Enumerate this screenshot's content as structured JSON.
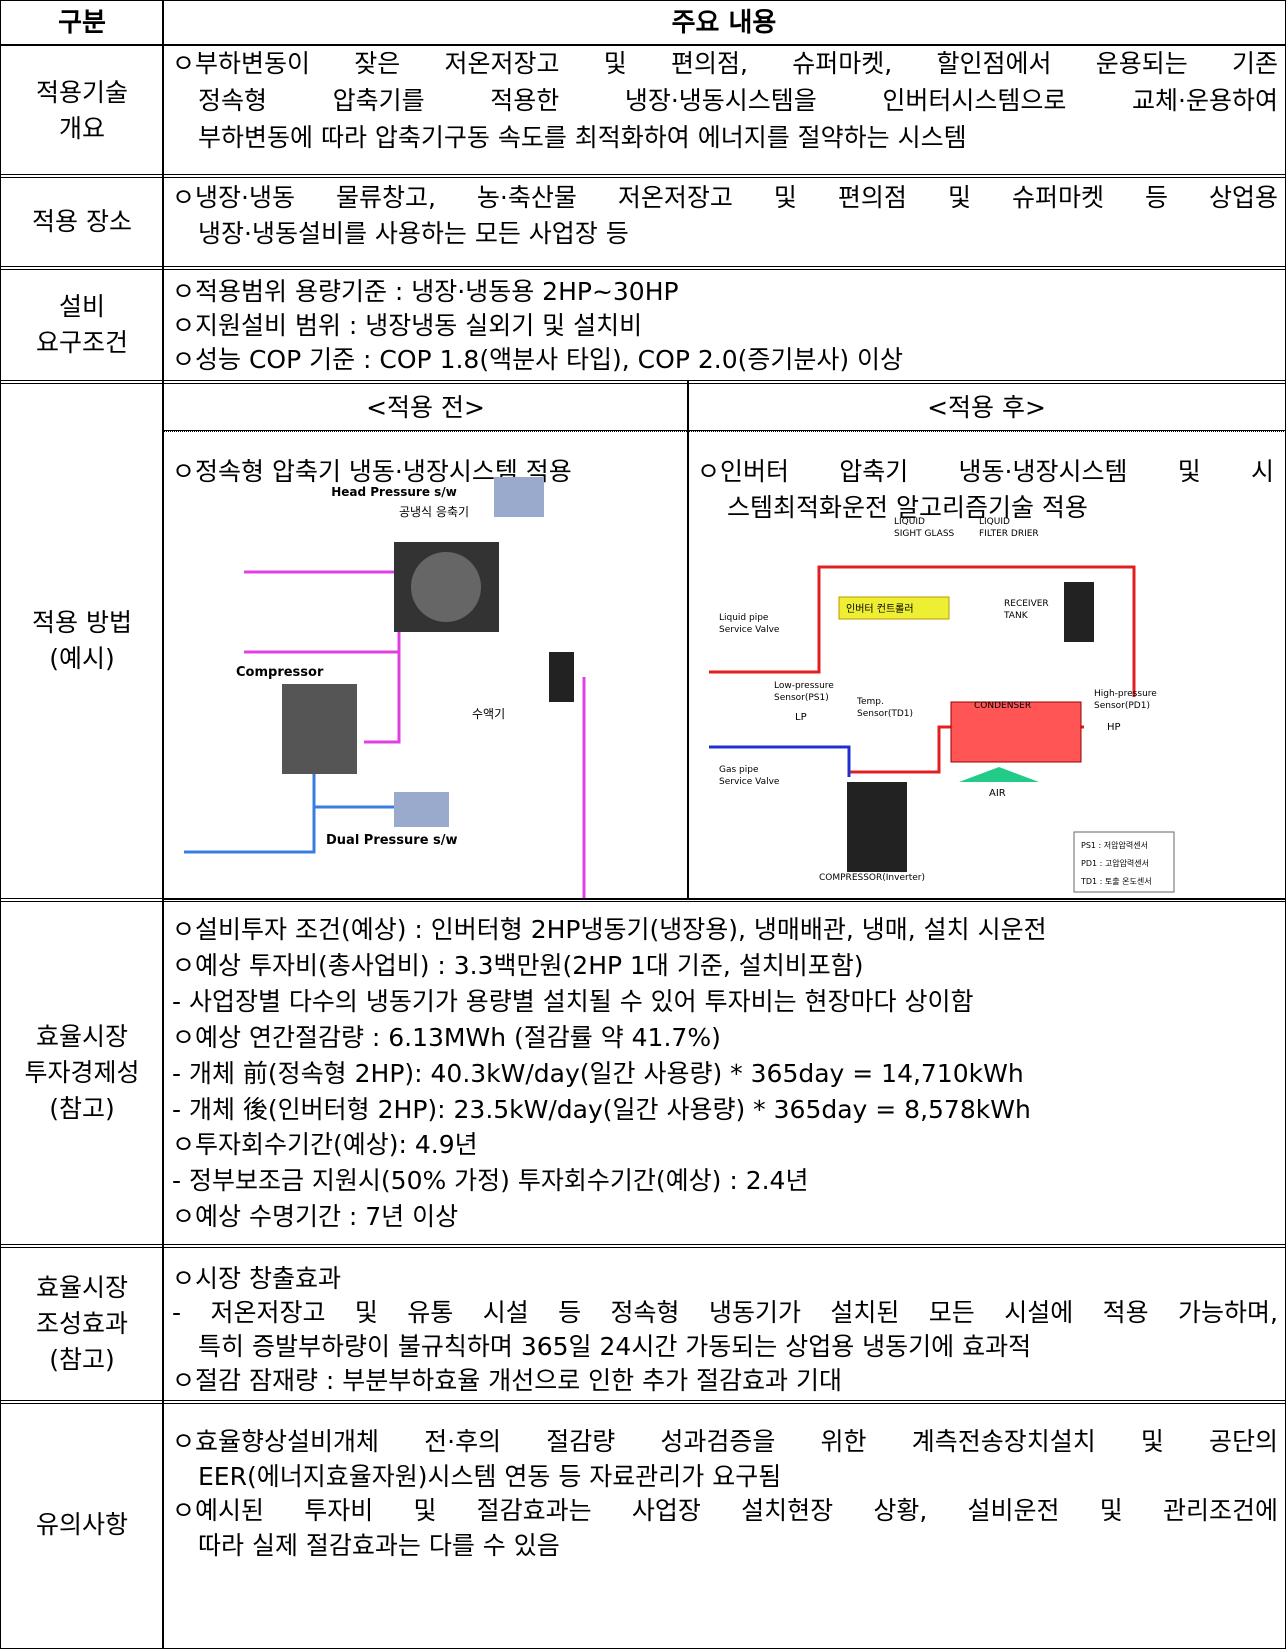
{
  "header": {
    "col1": "구분",
    "col2": "주요 내용"
  },
  "overview": {
    "label": [
      "적용기술",
      "개요"
    ],
    "lines": [
      "ㅇ부하변동이 잦은 저온저장고 및 편의점, 슈퍼마켓, 할인점에서 운용되는 기존",
      "정속형 압축기를 적용한 냉장·냉동시스템을 인버터시스템으로 교체·운용하여",
      "부하변동에 따라 압축기구동 속도를 최적화하여 에너지를 절약하는 시스템"
    ]
  },
  "site": {
    "label": [
      "적용 장소"
    ],
    "lines": [
      "ㅇ냉장·냉동 물류창고, 농·축산물 저온저장고 및 편의점 및 슈퍼마켓 등 상업용",
      "냉장·냉동설비를 사용하는 모든 사업장 등"
    ]
  },
  "requirements": {
    "label": [
      "설비",
      "요구조건"
    ],
    "lines": [
      "ㅇ적용범위 용량기준 : 냉장·냉동용 2HP~30HP",
      "ㅇ지원설비 범위 : 냉장냉동 실외기 및 설치비",
      "ㅇ성능 COP 기준 : COP 1.8(액분사 타입), COP 2.0(증기분사) 이상"
    ]
  },
  "method": {
    "label": [
      "적용 방법",
      "(예시)"
    ],
    "before": {
      "heading": "<적용 전>",
      "lines": [
        "ㅇ정속형 압축기 냉동·냉장시스템 적용"
      ],
      "diagram": [
        "Head Pressure s/w",
        "공냉식 응축기",
        "Compressor",
        "수액기",
        "Dual Pressure s/w"
      ]
    },
    "after": {
      "heading": "<적용 후>",
      "lines": [
        "ㅇ인버터 압축기 냉동·냉장시스템 및 시",
        "스템최적화운전 알고리즘기술 적용"
      ],
      "diagram": [
        "LIQUID",
        "SIGHT GLASS",
        "LIQUID",
        "FILTER DRIER",
        "인버터 컨트롤러",
        "Liquid pipe",
        "Service Valve",
        "RECEIVER",
        "TANK",
        "Low-pressure",
        "Sensor(PS1)",
        "LP",
        "Temp.",
        "Sensor(TD1)",
        "CONDENSER",
        "High-pressure",
        "Sensor(PD1)",
        "HP",
        "Gas pipe",
        "Service Valve",
        "AIR",
        "COMPRESSOR(Inverter)",
        "PS1 : 저압압력센서",
        "PD1 : 고압압력센서",
        "TD1 : 토출 온도센서"
      ]
    }
  },
  "economics": {
    "label": [
      "효율시장",
      "투자경제성",
      "(참고)"
    ],
    "lines": [
      "ㅇ설비투자 조건(예상) : 인버터형 2HP냉동기(냉장용), 냉매배관, 냉매, 설치 시운전",
      "ㅇ예상 투자비(총사업비) : 3.3백만원(2HP 1대 기준, 설치비포함)",
      " - 사업장별 다수의 냉동기가 용량별 설치될 수 있어 투자비는 현장마다 상이함",
      "ㅇ예상 연간절감량 : 6.13MWh (절감률 약 41.7%)",
      " - 개체 前(정속형 2HP): 40.3kW/day(일간 사용량) * 365day = 14,710kWh",
      " - 개체 後(인버터형 2HP): 23.5kW/day(일간 사용량) * 365day = 8,578kWh",
      "ㅇ투자회수기간(예상): 4.9년",
      " - 정부보조금 지원시(50% 가정) 투자회수기간(예상) : 2.4년",
      "ㅇ예상 수명기간 : 7년 이상"
    ]
  },
  "market": {
    "label": [
      "효율시장",
      "조성효과",
      "(참고)"
    ],
    "lines": [
      "ㅇ시장 창출효과",
      " - 저온저장고 및 유통 시설 등 정속형 냉동기가 설치된 모든 시설에 적용 가능하며,",
      "특히 증발부하량이 불규칙하며 365일 24시간 가동되는 상업용 냉동기에 효과적",
      "ㅇ절감 잠재량 : 부분부하효율 개선으로 인한 추가 절감효과 기대"
    ]
  },
  "notes": {
    "label": [
      "유의사항"
    ],
    "lines": [
      "ㅇ효율향상설비개체 전·후의 절감량 성과검증을 위한 계측전송장치설치 및 공단의",
      "EER(에너지효율자원)시스템 연동 등 자료관리가 요구됨",
      "ㅇ예시된 투자비 및 절감효과는 사업장 설치현장 상황, 설비운전 및 관리조건에",
      "따라 실제 절감효과는 다를 수 있음"
    ]
  }
}
